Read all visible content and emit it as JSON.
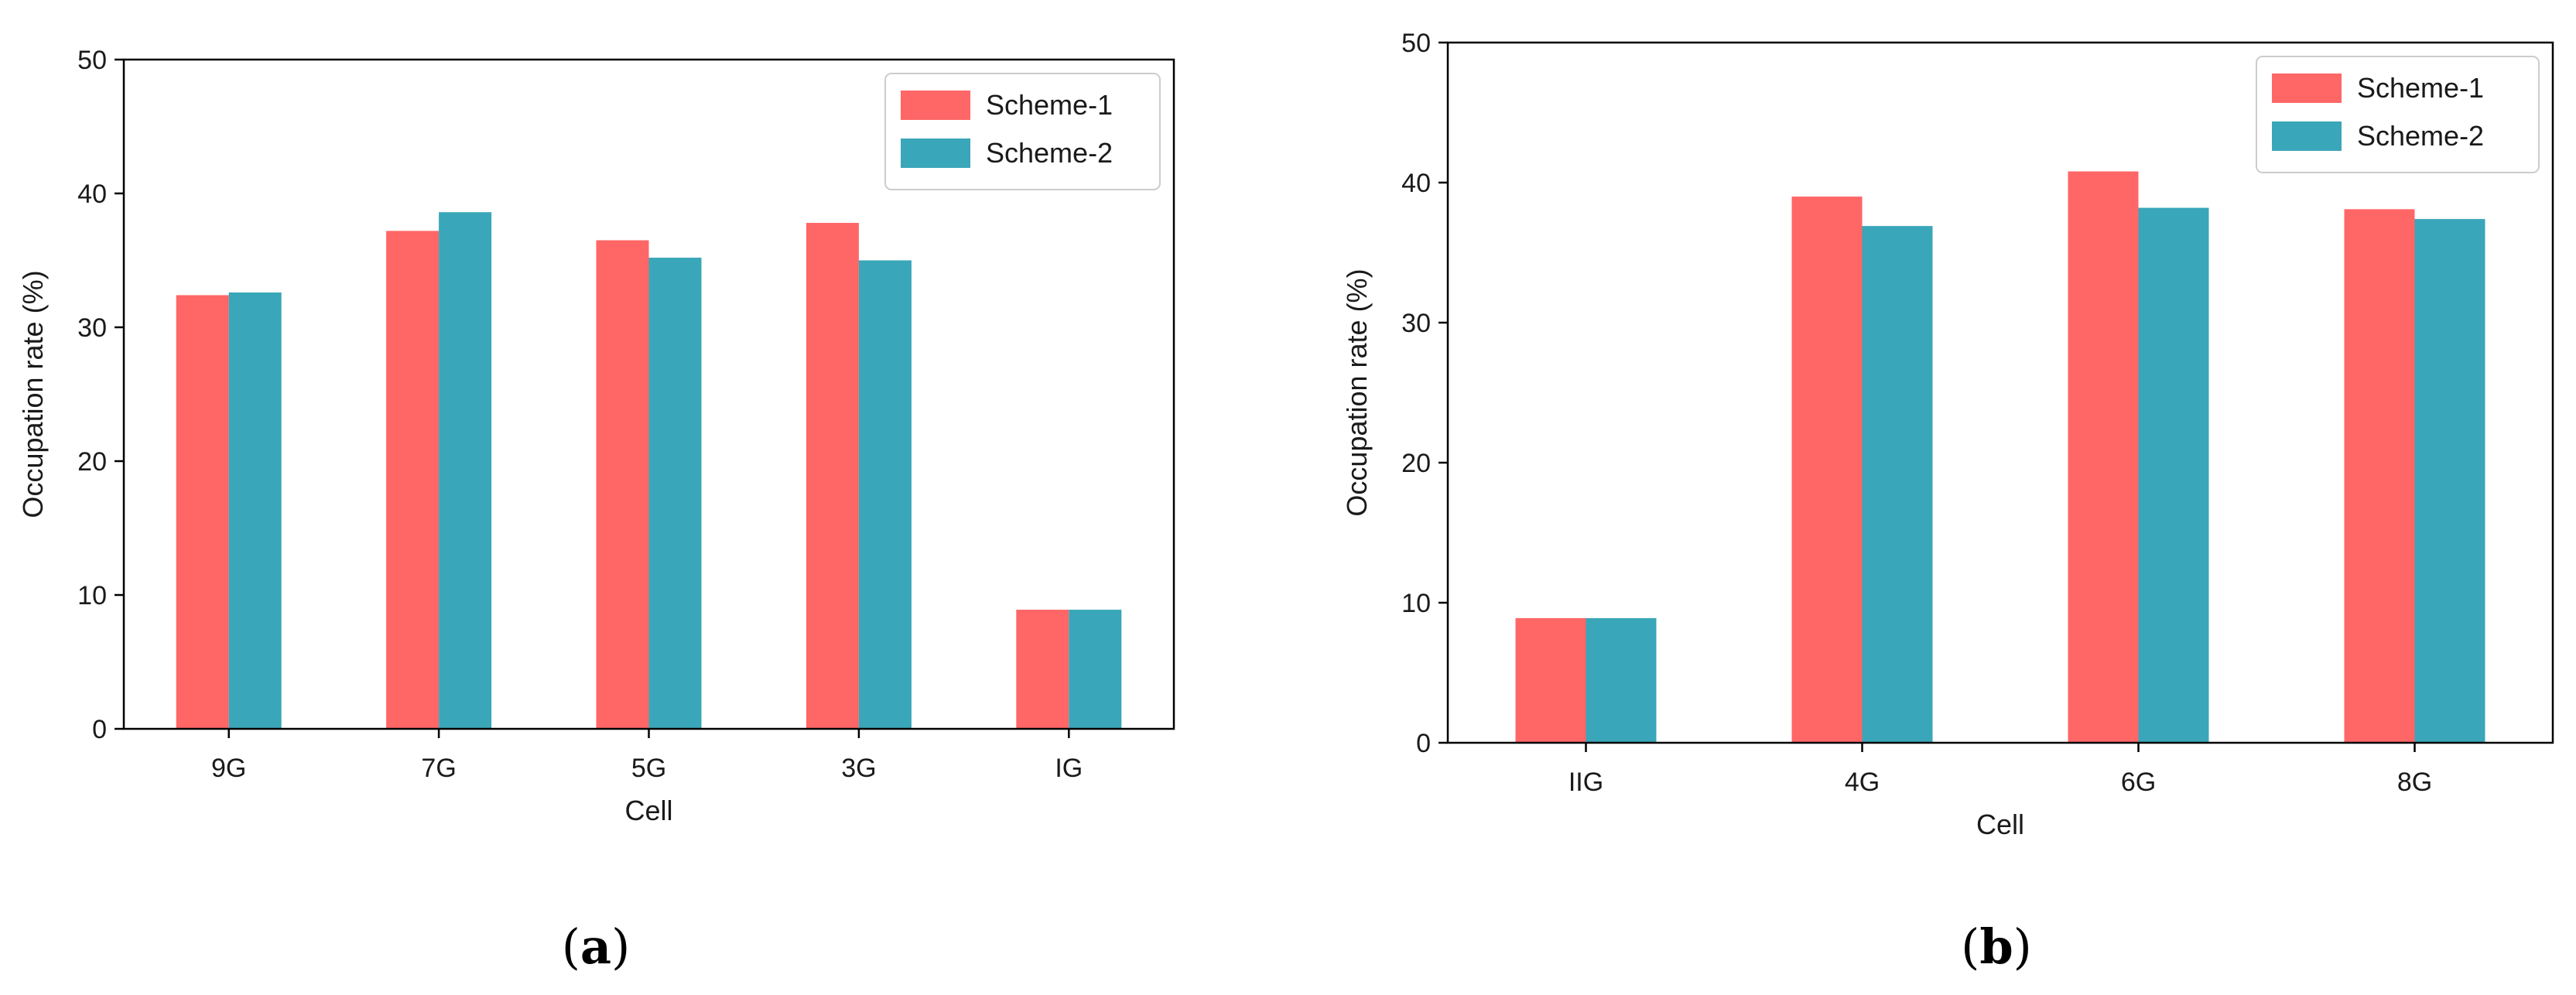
{
  "colors": {
    "scheme1": "#ff6666",
    "scheme2": "#3aa6b9",
    "axis": "#000000",
    "legend_border": "#cccccc"
  },
  "chart_data": [
    {
      "id": "a",
      "panel_label": "(a)",
      "label_letter": "a",
      "type": "bar",
      "title": "",
      "xlabel": "Cell",
      "ylabel": "Occupation rate (%)",
      "ylim": [
        0,
        50
      ],
      "yticks": [
        0,
        10,
        20,
        30,
        40,
        50
      ],
      "grid": false,
      "legend_position": "top-right",
      "categories": [
        "9G",
        "7G",
        "5G",
        "3G",
        "IG"
      ],
      "series": [
        {
          "name": "Scheme-1",
          "values": [
            32.4,
            37.2,
            36.5,
            37.8,
            8.9
          ]
        },
        {
          "name": "Scheme-2",
          "values": [
            32.6,
            38.6,
            35.2,
            35.0,
            8.9
          ]
        }
      ]
    },
    {
      "id": "b",
      "panel_label": "(b)",
      "label_letter": "b",
      "type": "bar",
      "title": "",
      "xlabel": "Cell",
      "ylabel": "Occupation rate (%)",
      "ylim": [
        0,
        50
      ],
      "yticks": [
        0,
        10,
        20,
        30,
        40,
        50
      ],
      "grid": false,
      "legend_position": "top-right",
      "categories": [
        "IIG",
        "4G",
        "6G",
        "8G"
      ],
      "series": [
        {
          "name": "Scheme-1",
          "values": [
            8.9,
            39.0,
            40.8,
            38.1
          ]
        },
        {
          "name": "Scheme-2",
          "values": [
            8.9,
            36.9,
            38.2,
            37.4
          ]
        }
      ]
    }
  ]
}
